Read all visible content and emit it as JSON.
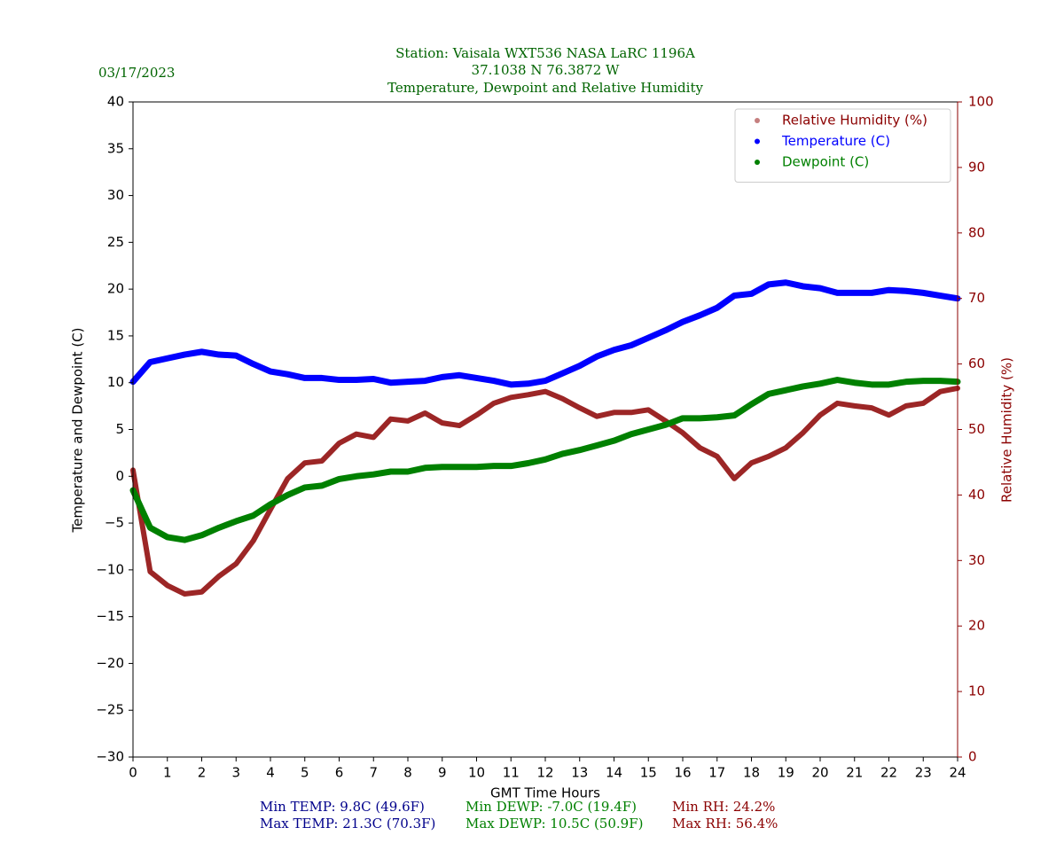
{
  "chart_data": {
    "type": "scatter",
    "title": "Station:  Vaisala WXT536  NASA LaRC 1196A",
    "subtitle": "37.1038 N 76.3872 W",
    "subtitle2": "Temperature, Dewpoint and Relative Humidity",
    "date": "03/17/2023",
    "xlabel": "GMT Time Hours",
    "ylabel": "Temperature and Dewpoint (C)",
    "y2label": "Relative Humidity (%)",
    "legend": "upper right",
    "x": [
      0,
      0.5,
      1,
      1.5,
      2,
      2.5,
      3,
      3.5,
      4,
      4.5,
      5,
      5.5,
      6,
      6.5,
      7,
      7.5,
      8,
      8.5,
      9,
      9.5,
      10,
      10.5,
      11,
      11.5,
      12,
      12.5,
      13,
      13.5,
      14,
      14.5,
      15,
      15.5,
      16,
      16.5,
      17,
      17.5,
      18,
      18.5,
      19,
      19.5,
      20,
      20.5,
      21,
      21.5,
      22,
      22.5,
      23,
      23.5,
      24
    ],
    "series": [
      {
        "name": "Relative Humidity (%)",
        "color": "#8b0000",
        "axis": "y2",
        "values": [
          43.8,
          28.3,
          26.2,
          24.9,
          25.2,
          27.6,
          29.5,
          33,
          37.8,
          42.5,
          44.9,
          45.2,
          47.9,
          49.3,
          48.8,
          51.6,
          51.3,
          52.5,
          51,
          50.6,
          52.2,
          54,
          54.9,
          55.3,
          55.8,
          54.7,
          53.3,
          52,
          52.6,
          52.6,
          53,
          51.3,
          49.5,
          47.2,
          45.9,
          42.5,
          44.9,
          45.9,
          47.2,
          49.5,
          52.2,
          54,
          53.6,
          53.3,
          52.2,
          53.6,
          54,
          55.8,
          56.3
        ]
      },
      {
        "name": "Temperature (C)",
        "color": "#0000ff",
        "values": [
          10.1,
          12.2,
          12.6,
          13,
          13.3,
          13,
          12.9,
          12,
          11.2,
          10.9,
          10.5,
          10.5,
          10.3,
          10.3,
          10.4,
          10,
          10.1,
          10.2,
          10.6,
          10.8,
          10.5,
          10.2,
          9.8,
          9.9,
          10.2,
          11,
          11.8,
          12.8,
          13.5,
          14,
          14.8,
          15.6,
          16.5,
          17.2,
          18,
          19.3,
          19.5,
          20.5,
          20.7,
          20.3,
          20.1,
          19.6,
          19.6,
          19.6,
          19.9,
          19.8,
          19.6,
          19.3,
          19
        ]
      },
      {
        "name": "Dewpoint (C)",
        "color": "#008000",
        "values": [
          -1.5,
          -5.5,
          -6.5,
          -6.8,
          -6.3,
          -5.5,
          -4.8,
          -4.2,
          -3,
          -2,
          -1.2,
          -1,
          -0.3,
          0,
          0.2,
          0.5,
          0.5,
          0.9,
          1,
          1,
          1,
          1.1,
          1.1,
          1.4,
          1.8,
          2.4,
          2.8,
          3.3,
          3.8,
          4.5,
          5,
          5.5,
          6.2,
          6.2,
          6.3,
          6.5,
          7.7,
          8.8,
          9.2,
          9.6,
          9.9,
          10.3,
          10,
          9.8,
          9.8,
          10.1,
          10.2,
          10.2,
          10.1
        ]
      }
    ],
    "xlim": [
      0,
      24
    ],
    "xticks": [
      0,
      1,
      2,
      3,
      4,
      5,
      6,
      7,
      8,
      9,
      10,
      11,
      12,
      13,
      14,
      15,
      16,
      17,
      18,
      19,
      20,
      21,
      22,
      23,
      24
    ],
    "ylim": [
      -30,
      40
    ],
    "yticks": [
      {
        "value": -30,
        "label": "−30"
      },
      {
        "value": -25,
        "label": "−25"
      },
      {
        "value": -20,
        "label": "−20"
      },
      {
        "value": -15,
        "label": "−15"
      },
      {
        "value": -10,
        "label": "−10"
      },
      {
        "value": -5,
        "label": "−5"
      },
      0,
      5,
      10,
      15,
      20,
      25,
      30,
      35,
      40
    ],
    "y2lim": [
      0,
      100
    ],
    "y2ticks": [
      0,
      10,
      20,
      30,
      40,
      50,
      60,
      70,
      80,
      90,
      100
    ],
    "stats": [
      {
        "color": "#00008b",
        "lines": [
          "Min TEMP: 9.8C (49.6F)",
          "Max TEMP: 21.3C (70.3F)"
        ]
      },
      {
        "color": "#008000",
        "lines": [
          "Min DEWP: -7.0C (19.4F)",
          "Max DEWP: 10.5C (50.9F)"
        ]
      },
      {
        "color": "#8b0000",
        "lines": [
          "Min RH: 24.2%",
          "Max RH: 56.4%"
        ]
      }
    ]
  }
}
